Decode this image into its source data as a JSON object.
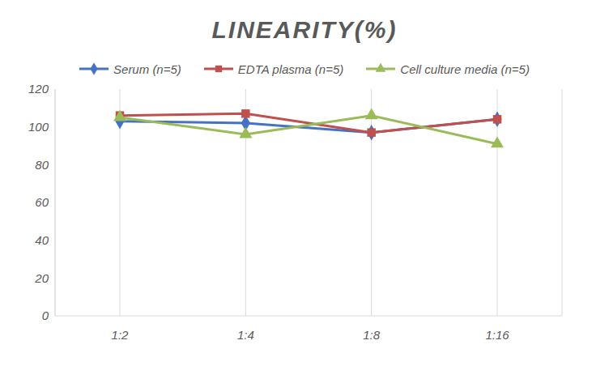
{
  "chart_data": {
    "type": "line",
    "title": "LINEARITY(%)",
    "categories": [
      "1:2",
      "1:4",
      "1:8",
      "1:16"
    ],
    "series": [
      {
        "name": "Serum (n=5)",
        "color": "#4472c4",
        "marker": "diamond",
        "values": [
          103,
          102,
          97,
          104
        ]
      },
      {
        "name": "EDTA plasma (n=5)",
        "color": "#c0504d",
        "marker": "square",
        "values": [
          106,
          107,
          97,
          104
        ]
      },
      {
        "name": "Cell culture media (n=5)",
        "color": "#9bbb59",
        "marker": "triangle",
        "values": [
          105,
          96,
          106,
          91
        ]
      }
    ],
    "ylim": [
      0,
      120
    ],
    "yticks": [
      0,
      20,
      40,
      60,
      80,
      100,
      120
    ],
    "grid": true,
    "legend": "top"
  }
}
